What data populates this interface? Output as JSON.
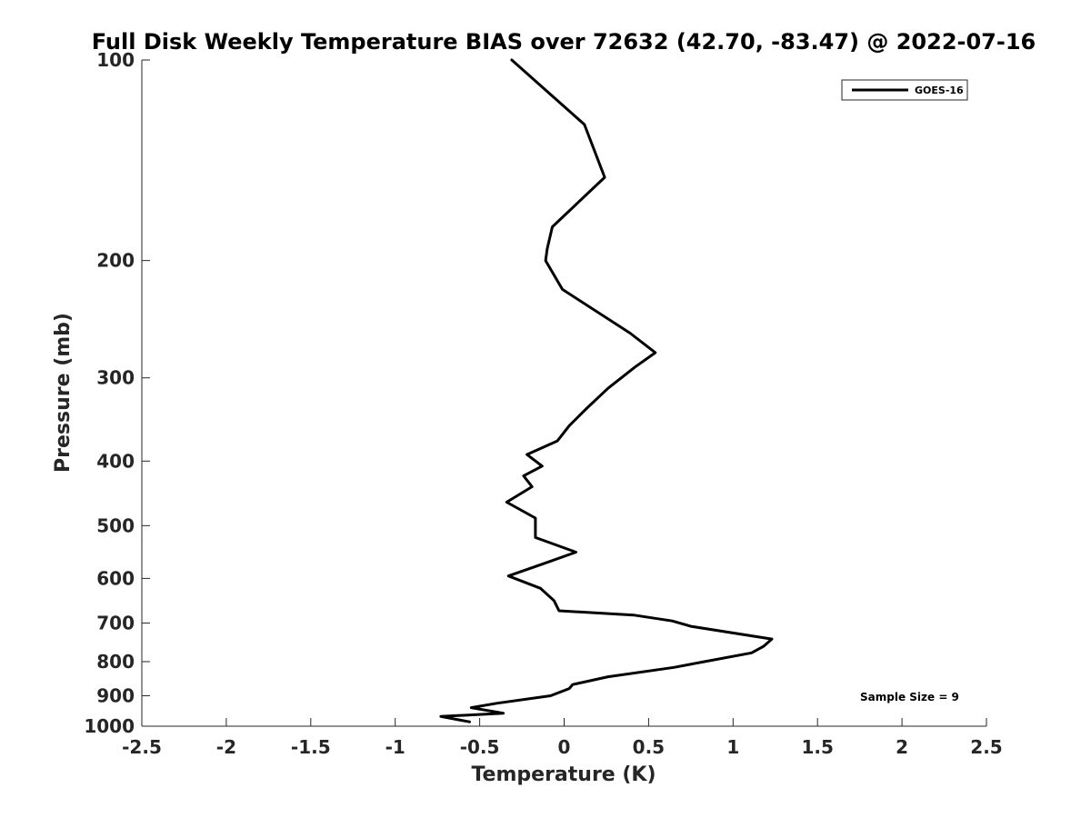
{
  "chart_data": {
    "type": "line",
    "title": "Full Disk Weekly Temperature BIAS over 72632 (42.70, -83.47) @ 2022-07-16",
    "xlabel": "Temperature (K)",
    "ylabel": "Pressure (mb)",
    "xlim": [
      -2.5,
      2.5
    ],
    "ylim": [
      100,
      1000
    ],
    "y_scale": "log",
    "y_reversed": true,
    "x_ticks": [
      -2.5,
      -2,
      -1.5,
      -1,
      -0.5,
      0,
      0.5,
      1,
      1.5,
      2,
      2.5
    ],
    "x_tick_labels": [
      "-2.5",
      "-2",
      "-1.5",
      "-1",
      "-0.5",
      "0",
      "0.5",
      "1",
      "1.5",
      "2",
      "2.5"
    ],
    "y_ticks": [
      100,
      200,
      300,
      400,
      500,
      600,
      700,
      800,
      900,
      1000
    ],
    "y_tick_labels": [
      "100",
      "200",
      "300",
      "400",
      "500",
      "600",
      "700",
      "800",
      "900",
      "1000"
    ],
    "grid": false,
    "legend_position": "top-right",
    "annotation": "Sample Size = 9",
    "series": [
      {
        "name": "GOES-16",
        "color": "#000000",
        "points": [
          [
            -0.31,
            100
          ],
          [
            0.12,
            125
          ],
          [
            0.24,
            150
          ],
          [
            -0.07,
            178
          ],
          [
            -0.1,
            192
          ],
          [
            -0.11,
            200
          ],
          [
            -0.01,
            221
          ],
          [
            0.39,
            257
          ],
          [
            0.54,
            275
          ],
          [
            0.42,
            289
          ],
          [
            0.26,
            311
          ],
          [
            0.13,
            334
          ],
          [
            0.03,
            354
          ],
          [
            -0.04,
            373
          ],
          [
            -0.22,
            391
          ],
          [
            -0.13,
            407
          ],
          [
            -0.24,
            421
          ],
          [
            -0.19,
            437
          ],
          [
            -0.34,
            461
          ],
          [
            -0.17,
            487
          ],
          [
            -0.17,
            521
          ],
          [
            0.07,
            548
          ],
          [
            -0.12,
            570
          ],
          [
            -0.33,
            595
          ],
          [
            -0.14,
            621
          ],
          [
            -0.06,
            648
          ],
          [
            -0.03,
            671
          ],
          [
            0.41,
            681
          ],
          [
            0.64,
            695
          ],
          [
            0.75,
            708
          ],
          [
            1.23,
            740
          ],
          [
            1.18,
            759
          ],
          [
            1.11,
            776
          ],
          [
            0.83,
            800
          ],
          [
            0.65,
            816
          ],
          [
            0.26,
            843
          ],
          [
            0.05,
            866
          ],
          [
            0.03,
            878
          ],
          [
            -0.08,
            900
          ],
          [
            -0.4,
            924
          ],
          [
            -0.55,
            938
          ],
          [
            -0.36,
            956
          ],
          [
            -0.73,
            967
          ],
          [
            -0.56,
            985
          ]
        ]
      }
    ]
  }
}
